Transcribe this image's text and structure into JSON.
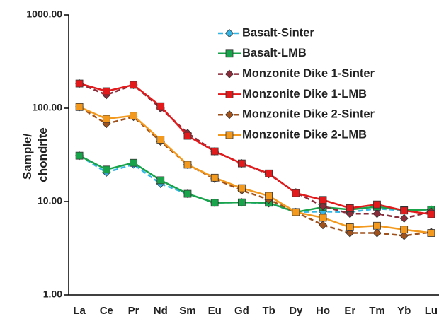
{
  "chart_data": {
    "type": "line",
    "ylabel": [
      "Sample/",
      "chondrite"
    ],
    "categories": [
      "La",
      "Ce",
      "Pr",
      "Nd",
      "Sm",
      "Eu",
      "Gd",
      "Tb",
      "Dy",
      "Ho",
      "Er",
      "Tm",
      "Yb",
      "Lu"
    ],
    "ylim": [
      1,
      1000
    ],
    "log_y": true,
    "yticks": [
      {
        "value": 1,
        "label": "1.00"
      },
      {
        "value": 10,
        "label": "10.00"
      },
      {
        "value": 100,
        "label": "100.00"
      },
      {
        "value": 1000,
        "label": "1000.00"
      }
    ],
    "legend": "top-right",
    "series": [
      {
        "name": "Basalt-Sinter",
        "color": "#33b5e5",
        "marker": "diamond",
        "dashed": true,
        "values": [
          31,
          20.5,
          25,
          15.5,
          12.1,
          9.7,
          9.8,
          9.6,
          7.7,
          7.8,
          7.7,
          8.4,
          8.0,
          8.2
        ]
      },
      {
        "name": "Basalt-LMB",
        "color": "#19a34a",
        "marker": "square",
        "dashed": false,
        "values": [
          31,
          22,
          26,
          16.9,
          12.1,
          9.7,
          9.8,
          9.7,
          7.7,
          8.7,
          8.2,
          8.8,
          8.1,
          8.2
        ]
      },
      {
        "name": "Monzonite Dike 1-Sinter",
        "color": "#8b2c3a",
        "marker": "diamond",
        "dashed": true,
        "values": [
          184,
          139,
          178,
          100,
          54,
          34.5,
          25.6,
          19.7,
          12.5,
          8.9,
          7.4,
          7.4,
          6.6,
          7.8
        ]
      },
      {
        "name": "Monzonite Dike 1-LMB",
        "color": "#e31a1c",
        "marker": "square",
        "dashed": false,
        "values": [
          184,
          152,
          178,
          105,
          50.6,
          34.5,
          25.6,
          20,
          12.3,
          10.4,
          8.5,
          9.3,
          8.0,
          7.3
        ]
      },
      {
        "name": "Monzonite Dike 2-Sinter",
        "color": "#a0521c",
        "marker": "diamond",
        "dashed": true,
        "values": [
          103,
          68,
          81,
          44,
          24.8,
          17.5,
          13.2,
          10.5,
          7.7,
          5.6,
          4.6,
          4.6,
          4.3,
          4.7
        ]
      },
      {
        "name": "Monzonite Dike 2-LMB",
        "color": "#f39a1e",
        "marker": "square",
        "dashed": false,
        "values": [
          103,
          77,
          83,
          46,
          24.8,
          18,
          13.9,
          11.5,
          7.7,
          6.7,
          5.3,
          5.5,
          5.0,
          4.6
        ]
      }
    ]
  }
}
